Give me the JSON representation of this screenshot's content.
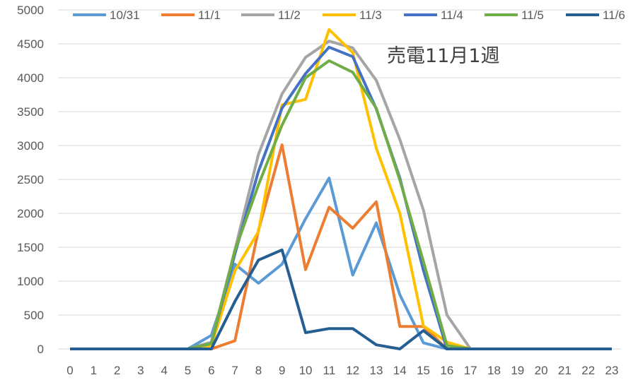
{
  "chart_data": {
    "type": "line",
    "title": "売電11月1週",
    "xlabel": "",
    "ylabel": "",
    "x": [
      0,
      1,
      2,
      3,
      4,
      5,
      6,
      7,
      8,
      9,
      10,
      11,
      12,
      13,
      14,
      15,
      16,
      17,
      18,
      19,
      20,
      21,
      22,
      23
    ],
    "ylim": [
      0,
      5000
    ],
    "yticks": [
      0,
      500,
      1000,
      1500,
      2000,
      2500,
      3000,
      3500,
      4000,
      4500,
      5000
    ],
    "grid": "horizontal",
    "legend_position": "top",
    "series": [
      {
        "name": "10/31",
        "color": "#5b9bd5",
        "values": [
          0,
          0,
          0,
          0,
          0,
          0,
          200,
          1250,
          970,
          1250,
          1920,
          2520,
          1090,
          1860,
          800,
          90,
          0,
          0,
          0,
          0,
          0,
          0,
          0,
          0
        ]
      },
      {
        "name": "11/1",
        "color": "#ed7d31",
        "values": [
          0,
          0,
          0,
          0,
          0,
          0,
          0,
          120,
          1750,
          3010,
          1170,
          2090,
          1780,
          2170,
          330,
          330,
          0,
          0,
          0,
          0,
          0,
          0,
          0,
          0
        ]
      },
      {
        "name": "11/2",
        "color": "#a5a5a5",
        "values": [
          0,
          0,
          0,
          0,
          0,
          0,
          100,
          1460,
          2870,
          3760,
          4300,
          4540,
          4440,
          3960,
          3090,
          2050,
          500,
          0,
          0,
          0,
          0,
          0,
          0,
          0
        ]
      },
      {
        "name": "11/3",
        "color": "#ffc000",
        "values": [
          0,
          0,
          0,
          0,
          0,
          0,
          50,
          1150,
          1730,
          3600,
          3680,
          4710,
          4370,
          2960,
          2000,
          340,
          100,
          0,
          0,
          0,
          0,
          0,
          0,
          0
        ]
      },
      {
        "name": "11/4",
        "color": "#4472c4",
        "values": [
          0,
          0,
          0,
          0,
          0,
          0,
          80,
          1400,
          2620,
          3550,
          4060,
          4450,
          4310,
          3540,
          2520,
          1160,
          0,
          0,
          0,
          0,
          0,
          0,
          0,
          0
        ]
      },
      {
        "name": "11/5",
        "color": "#70ad47",
        "values": [
          0,
          0,
          0,
          0,
          0,
          0,
          80,
          1450,
          2420,
          3300,
          4000,
          4250,
          4080,
          3550,
          2490,
          1290,
          50,
          0,
          0,
          0,
          0,
          0,
          0,
          0
        ]
      },
      {
        "name": "11/6",
        "color": "#255e91",
        "values": [
          0,
          0,
          0,
          0,
          0,
          0,
          0,
          700,
          1310,
          1460,
          240,
          300,
          300,
          60,
          0,
          270,
          0,
          0,
          0,
          0,
          0,
          0,
          0,
          0
        ]
      }
    ]
  }
}
